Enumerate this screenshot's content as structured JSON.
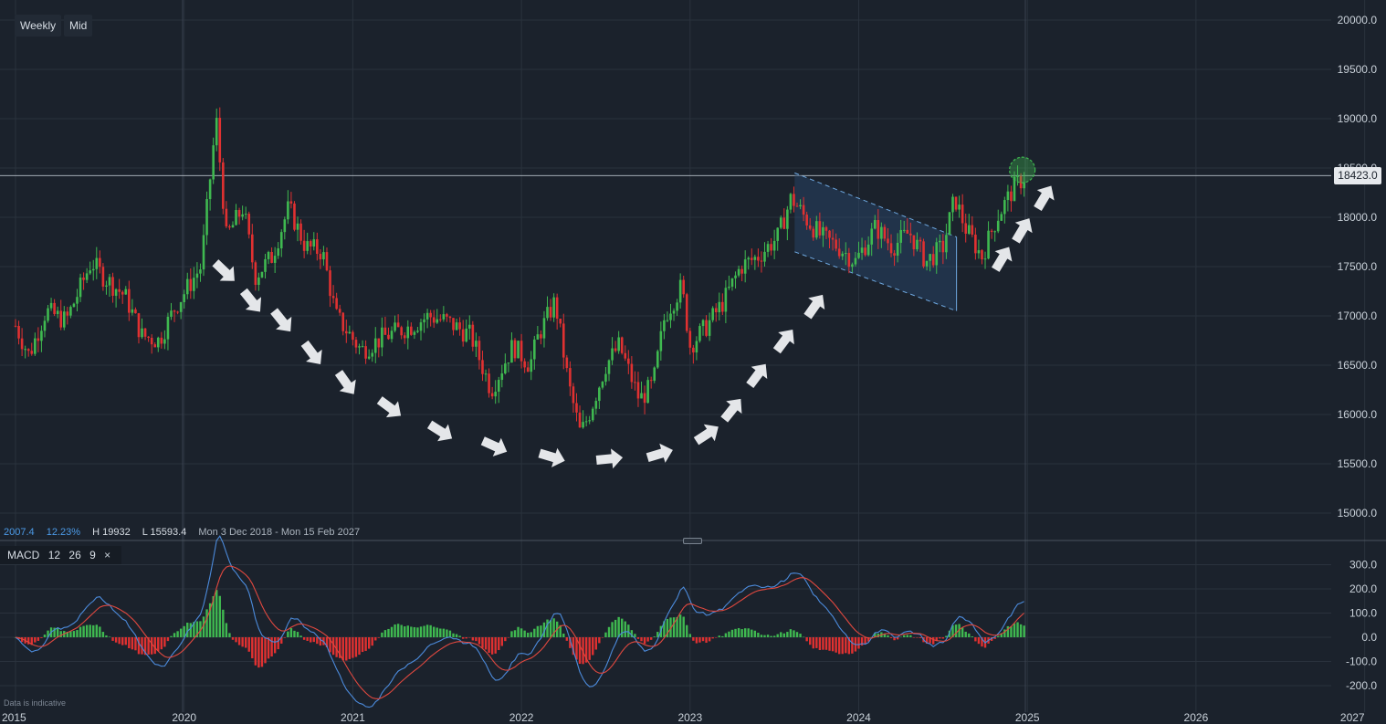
{
  "toolbar": {
    "interval": "Weekly",
    "price_type": "Mid"
  },
  "stats": {
    "change": "2007.4",
    "change_pct": "12.23%",
    "high": "H 19932",
    "low": "L 15593.4",
    "range": "Mon 3 Dec 2018 - Mon 15 Feb 2027"
  },
  "macd": {
    "name": "MACD",
    "fast": "12",
    "slow": "26",
    "signal": "9",
    "close_glyph": "×"
  },
  "footer_note": "Data is indicative",
  "current_price": "18423.0",
  "colors": {
    "up": "#3fb950",
    "down": "#e03131",
    "background": "#1b222c",
    "macd_line": "#4c8bdc",
    "signal_line": "#e0483f",
    "channel": "#2b4a6e"
  },
  "chart_data": {
    "type": "candlestick",
    "x_axis": {
      "ticks": [
        "2015",
        "2020",
        "2021",
        "2022",
        "2023",
        "2024",
        "2025",
        "2026",
        "2027"
      ]
    },
    "y_axis": {
      "ticks": [
        "20000.0",
        "19500.0",
        "19000.0",
        "18500.0",
        "18000.0",
        "17500.0",
        "17000.0",
        "16500.0",
        "16000.0",
        "15500.0",
        "15000.0"
      ],
      "range": [
        14750,
        20150
      ]
    },
    "macd_axis": {
      "ticks": [
        "300.0",
        "200.0",
        "100.0",
        "0.0",
        "-100.0",
        "-200.0"
      ],
      "range": [
        -240,
        340
      ]
    },
    "current_price": 18423,
    "close_anchors": [
      [
        2019.0,
        16900
      ],
      [
        2019.08,
        16600
      ],
      [
        2019.18,
        17050
      ],
      [
        2019.3,
        16950
      ],
      [
        2019.45,
        17550
      ],
      [
        2019.52,
        17400
      ],
      [
        2019.65,
        17200
      ],
      [
        2019.75,
        16800
      ],
      [
        2019.85,
        16750
      ],
      [
        2019.95,
        17100
      ],
      [
        2020.1,
        17500
      ],
      [
        2020.19,
        19000
      ],
      [
        2020.25,
        17800
      ],
      [
        2020.35,
        18100
      ],
      [
        2020.42,
        17400
      ],
      [
        2020.52,
        17600
      ],
      [
        2020.62,
        18100
      ],
      [
        2020.72,
        17700
      ],
      [
        2020.82,
        17650
      ],
      [
        2020.9,
        17000
      ],
      [
        2021.05,
        16650
      ],
      [
        2021.2,
        16800
      ],
      [
        2021.35,
        16900
      ],
      [
        2021.45,
        17000
      ],
      [
        2021.55,
        16950
      ],
      [
        2021.7,
        16800
      ],
      [
        2021.82,
        16250
      ],
      [
        2021.95,
        16700
      ],
      [
        2022.05,
        16500
      ],
      [
        2022.1,
        16800
      ],
      [
        2022.2,
        17150
      ],
      [
        2022.28,
        16300
      ],
      [
        2022.35,
        15800
      ],
      [
        2022.4,
        16000
      ],
      [
        2022.5,
        16500
      ],
      [
        2022.58,
        16700
      ],
      [
        2022.7,
        16150
      ],
      [
        2022.78,
        16300
      ],
      [
        2022.85,
        17000
      ],
      [
        2022.95,
        17300
      ],
      [
        2023.0,
        16700
      ],
      [
        2023.1,
        16900
      ],
      [
        2023.2,
        17150
      ],
      [
        2023.3,
        17500
      ],
      [
        2023.4,
        17600
      ],
      [
        2023.52,
        17800
      ],
      [
        2023.6,
        18200
      ],
      [
        2023.68,
        18000
      ],
      [
        2023.78,
        17800
      ],
      [
        2023.88,
        17700
      ],
      [
        2023.98,
        17550
      ],
      [
        2024.1,
        17900
      ],
      [
        2024.2,
        17700
      ],
      [
        2024.3,
        17850
      ],
      [
        2024.4,
        17550
      ],
      [
        2024.5,
        17700
      ],
      [
        2024.57,
        18200
      ],
      [
        2024.63,
        17900
      ],
      [
        2024.73,
        17600
      ],
      [
        2024.82,
        18000
      ],
      [
        2024.92,
        18300
      ],
      [
        2024.99,
        18423
      ]
    ],
    "highlight": {
      "x": 2024.97,
      "y": 18480
    },
    "channel": {
      "top": [
        [
          2023.62,
          18450
        ],
        [
          2024.58,
          17800
        ]
      ],
      "bottom": [
        [
          2023.62,
          17650
        ],
        [
          2024.58,
          17050
        ]
      ]
    },
    "arrows": [
      [
        2020.24,
        17450,
        1.0,
        0.95
      ],
      [
        2020.4,
        17150,
        0.8,
        1.0
      ],
      [
        2020.58,
        16950,
        0.8,
        1.0
      ],
      [
        2020.76,
        16620,
        0.75,
        1.0
      ],
      [
        2020.96,
        16320,
        0.7,
        1.0
      ],
      [
        2021.22,
        16070,
        0.95,
        0.7
      ],
      [
        2021.52,
        15830,
        0.95,
        0.6
      ],
      [
        2021.84,
        15680,
        1.0,
        0.45
      ],
      [
        2022.18,
        15570,
        1.0,
        0.3
      ],
      [
        2022.52,
        15550,
        1.0,
        -0.1
      ],
      [
        2022.82,
        15600,
        1.0,
        -0.3
      ],
      [
        2023.1,
        15800,
        1.0,
        -0.65
      ],
      [
        2023.25,
        16050,
        0.8,
        -1.0
      ],
      [
        2023.4,
        16400,
        0.75,
        -1.0
      ],
      [
        2023.56,
        16750,
        0.75,
        -1.0
      ],
      [
        2023.74,
        17100,
        0.7,
        -1.0
      ],
      [
        2024.85,
        17580,
        0.6,
        -1.0
      ],
      [
        2024.97,
        17870,
        0.6,
        -1.0
      ],
      [
        2025.1,
        18200,
        0.6,
        -1.0
      ]
    ]
  }
}
